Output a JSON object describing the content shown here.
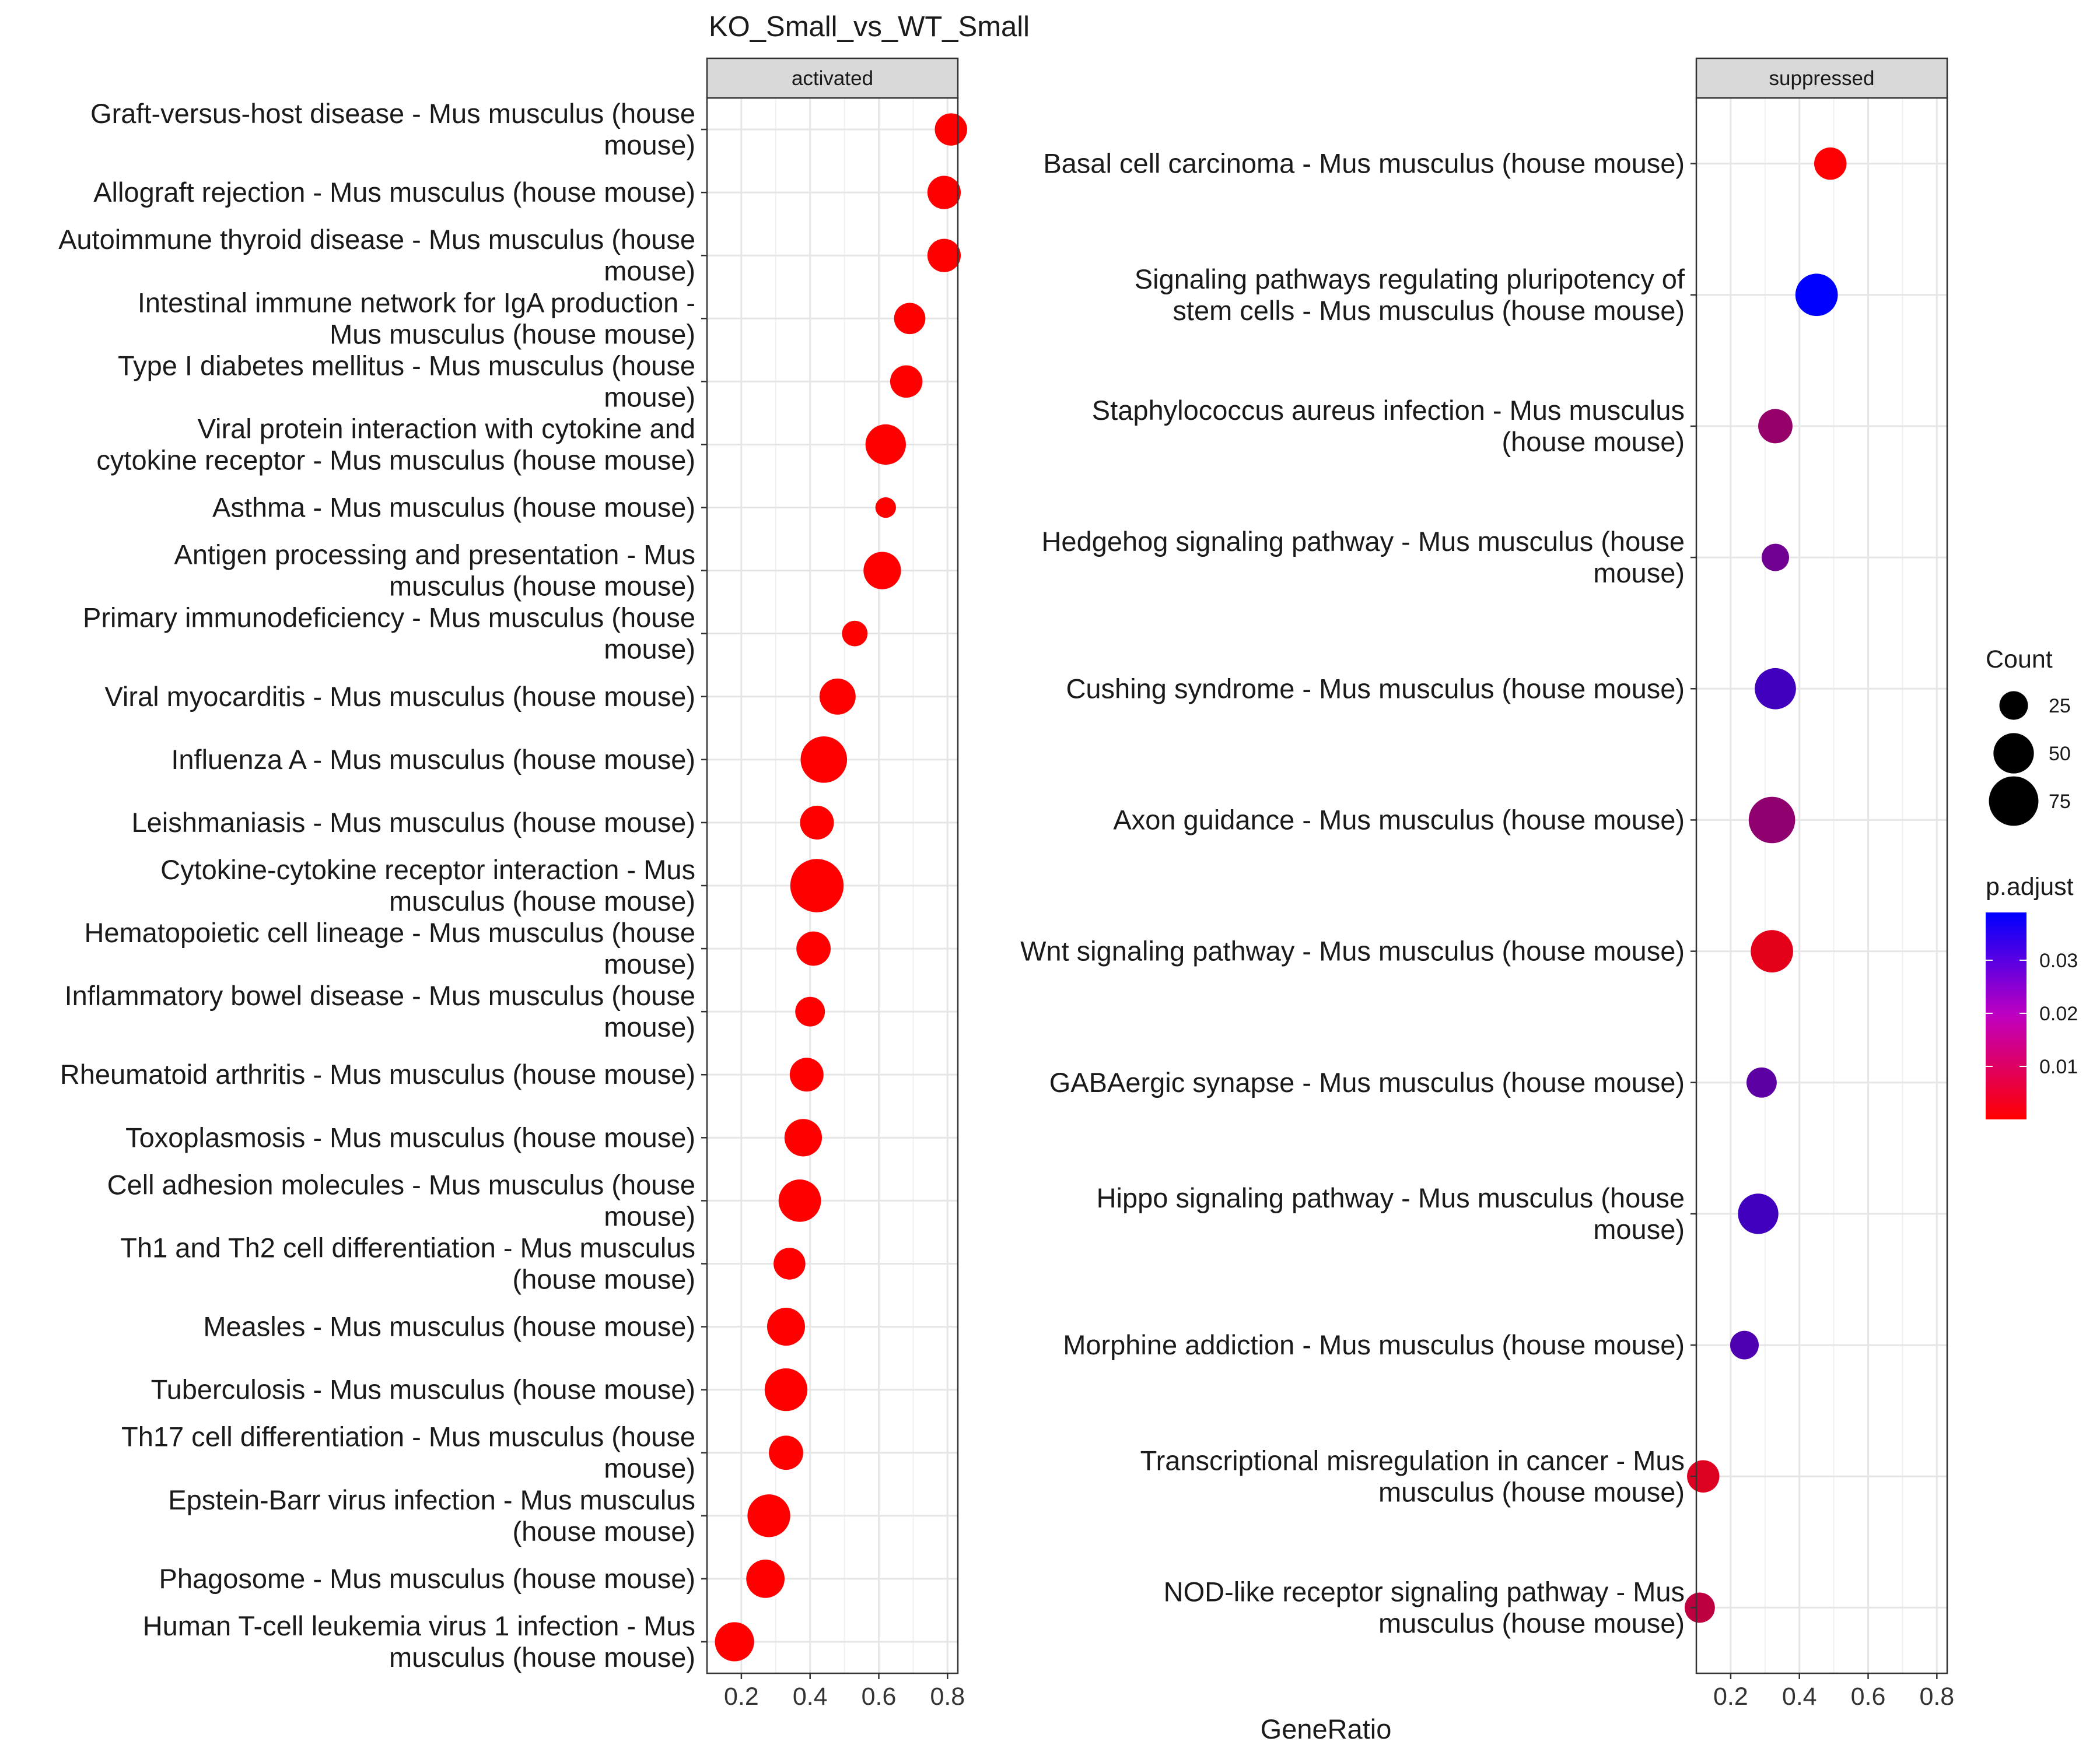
{
  "chart_data": {
    "type": "scatter",
    "title": "KO_Small_vs_WT_Small",
    "xlabel": "GeneRatio",
    "xlim": [
      0.1,
      0.83
    ],
    "xticks": [
      "0.2",
      "0.4",
      "0.6",
      "0.8"
    ],
    "grid": true,
    "legend_position": "right",
    "size_legend": {
      "title": "Count",
      "entries": [
        {
          "label": "25",
          "count": 25
        },
        {
          "label": "50",
          "count": 50
        },
        {
          "label": "75",
          "count": 75
        }
      ]
    },
    "color_legend": {
      "title": "p.adjust",
      "low_color": "#ff0000",
      "high_color": "#0000ff",
      "min": 0.0,
      "max": 0.039,
      "ticks": [
        {
          "label": "0.01",
          "value": 0.01
        },
        {
          "label": "0.02",
          "value": 0.02
        },
        {
          "label": "0.03",
          "value": 0.03
        }
      ]
    },
    "panels": [
      {
        "strip": "activated",
        "points": [
          {
            "label": [
              "Graft-versus-host disease - Mus musculus (house",
              "mouse)"
            ],
            "x": 0.81,
            "count": 32,
            "p": 0.0
          },
          {
            "label": [
              "Allograft rejection - Mus musculus (house mouse)"
            ],
            "x": 0.79,
            "count": 34,
            "p": 0.0
          },
          {
            "label": [
              "Autoimmune thyroid disease - Mus musculus (house",
              "mouse)"
            ],
            "x": 0.79,
            "count": 34,
            "p": 0.0
          },
          {
            "label": [
              "Intestinal immune network for IgA production -",
              "Mus musculus (house mouse)"
            ],
            "x": 0.69,
            "count": 30,
            "p": 0.0
          },
          {
            "label": [
              "Type I diabetes mellitus - Mus musculus (house",
              "mouse)"
            ],
            "x": 0.68,
            "count": 32,
            "p": 0.0
          },
          {
            "label": [
              "Viral protein interaction with cytokine and",
              "cytokine receptor - Mus musculus (house mouse)"
            ],
            "x": 0.62,
            "count": 50,
            "p": 0.0
          },
          {
            "label": [
              "Asthma - Mus musculus (house mouse)"
            ],
            "x": 0.62,
            "count": 13,
            "p": 0.0
          },
          {
            "label": [
              "Antigen processing and presentation - Mus",
              "musculus (house mouse)"
            ],
            "x": 0.61,
            "count": 43,
            "p": 0.0
          },
          {
            "label": [
              "Primary immunodeficiency - Mus musculus (house",
              "mouse)"
            ],
            "x": 0.53,
            "count": 20,
            "p": 0.0
          },
          {
            "label": [
              "Viral myocarditis - Mus musculus (house mouse)"
            ],
            "x": 0.48,
            "count": 40,
            "p": 0.0
          },
          {
            "label": [
              "Influenza A - Mus musculus (house mouse)"
            ],
            "x": 0.44,
            "count": 66,
            "p": 0.0
          },
          {
            "label": [
              "Leishmaniasis - Mus musculus (house mouse)"
            ],
            "x": 0.42,
            "count": 35,
            "p": 0.0
          },
          {
            "label": [
              "Cytokine-cytokine receptor interaction - Mus",
              "musculus (house mouse)"
            ],
            "x": 0.42,
            "count": 87,
            "p": 0.0
          },
          {
            "label": [
              "Hematopoietic cell lineage - Mus musculus (house",
              "mouse)"
            ],
            "x": 0.41,
            "count": 36,
            "p": 0.0
          },
          {
            "label": [
              "Inflammatory bowel disease - Mus musculus (house",
              "mouse)"
            ],
            "x": 0.4,
            "count": 27,
            "p": 0.0
          },
          {
            "label": [
              "Rheumatoid arthritis - Mus musculus (house mouse)"
            ],
            "x": 0.39,
            "count": 35,
            "p": 0.0
          },
          {
            "label": [
              "Toxoplasmosis - Mus musculus (house mouse)"
            ],
            "x": 0.38,
            "count": 43,
            "p": 0.0
          },
          {
            "label": [
              "Cell adhesion molecules - Mus musculus (house",
              "mouse)"
            ],
            "x": 0.37,
            "count": 55,
            "p": 0.0
          },
          {
            "label": [
              "Th1 and Th2 cell differentiation - Mus musculus",
              "(house mouse)"
            ],
            "x": 0.34,
            "count": 31,
            "p": 0.0
          },
          {
            "label": [
              "Measles - Mus musculus (house mouse)"
            ],
            "x": 0.33,
            "count": 44,
            "p": 0.0
          },
          {
            "label": [
              "Tuberculosis - Mus musculus (house mouse)"
            ],
            "x": 0.33,
            "count": 56,
            "p": 0.0
          },
          {
            "label": [
              "Th17 cell differentiation - Mus musculus (house",
              "mouse)"
            ],
            "x": 0.33,
            "count": 36,
            "p": 0.0
          },
          {
            "label": [
              "Epstein-Barr virus infection - Mus musculus",
              "(house mouse)"
            ],
            "x": 0.28,
            "count": 56,
            "p": 0.0
          },
          {
            "label": [
              "Phagosome - Mus musculus (house mouse)"
            ],
            "x": 0.27,
            "count": 45,
            "p": 0.0
          },
          {
            "label": [
              "Human T-cell leukemia virus 1 infection - Mus",
              "musculus (house mouse)"
            ],
            "x": 0.18,
            "count": 47,
            "p": 0.0
          }
        ]
      },
      {
        "strip": "suppressed",
        "points": [
          {
            "label": [
              "Basal cell carcinoma - Mus musculus (house mouse)"
            ],
            "x": 0.49,
            "count": 32,
            "p": 0.0005
          },
          {
            "label": [
              "Signaling pathways regulating pluripotency of",
              "stem cells - Mus musculus (house mouse)"
            ],
            "x": 0.45,
            "count": 55,
            "p": 0.039
          },
          {
            "label": [
              "Staphylococcus aureus infection - Mus musculus",
              "(house mouse)"
            ],
            "x": 0.33,
            "count": 36,
            "p": 0.016
          },
          {
            "label": [
              "Hedgehog signaling pathway - Mus musculus (house",
              "mouse)"
            ],
            "x": 0.33,
            "count": 23,
            "p": 0.022
          },
          {
            "label": [
              "Cushing syndrome - Mus musculus (house mouse)"
            ],
            "x": 0.33,
            "count": 52,
            "p": 0.029
          },
          {
            "label": [
              "Axon guidance - Mus musculus (house mouse)"
            ],
            "x": 0.32,
            "count": 66,
            "p": 0.017
          },
          {
            "label": [
              "Wnt signaling pathway - Mus musculus (house mouse)"
            ],
            "x": 0.32,
            "count": 55,
            "p": 0.004
          },
          {
            "label": [
              "GABAergic synapse - Mus musculus (house mouse)"
            ],
            "x": 0.29,
            "count": 28,
            "p": 0.025
          },
          {
            "label": [
              "Hippo signaling pathway - Mus musculus (house",
              "mouse)"
            ],
            "x": 0.28,
            "count": 50,
            "p": 0.029
          },
          {
            "label": [
              "Morphine addiction - Mus musculus (house mouse)"
            ],
            "x": 0.24,
            "count": 25,
            "p": 0.027
          },
          {
            "label": [
              "Transcriptional misregulation in cancer - Mus",
              "musculus (house mouse)"
            ],
            "x": 0.12,
            "count": 32,
            "p": 0.005
          },
          {
            "label": [
              "NOD-like receptor signaling pathway - Mus",
              "musculus (house mouse)"
            ],
            "x": 0.11,
            "count": 28,
            "p": 0.01
          }
        ]
      }
    ]
  }
}
